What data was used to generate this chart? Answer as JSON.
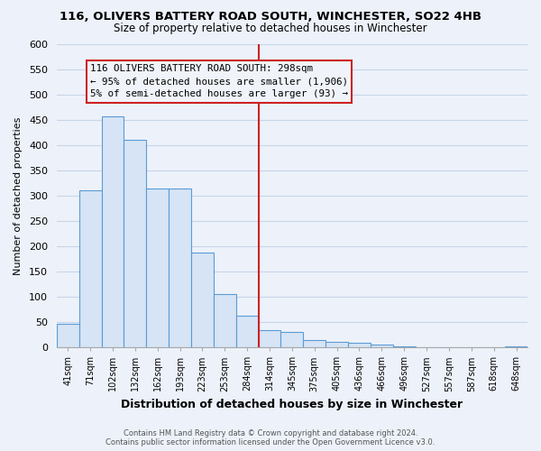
{
  "title": "116, OLIVERS BATTERY ROAD SOUTH, WINCHESTER, SO22 4HB",
  "subtitle": "Size of property relative to detached houses in Winchester",
  "xlabel": "Distribution of detached houses by size in Winchester",
  "ylabel": "Number of detached properties",
  "bar_labels": [
    "41sqm",
    "71sqm",
    "102sqm",
    "132sqm",
    "162sqm",
    "193sqm",
    "223sqm",
    "253sqm",
    "284sqm",
    "314sqm",
    "345sqm",
    "375sqm",
    "405sqm",
    "436sqm",
    "466sqm",
    "496sqm",
    "527sqm",
    "557sqm",
    "587sqm",
    "618sqm",
    "648sqm"
  ],
  "bar_values": [
    46,
    310,
    458,
    410,
    315,
    315,
    188,
    105,
    63,
    35,
    30,
    14,
    11,
    10,
    5,
    2,
    1,
    0,
    0,
    0,
    2
  ],
  "bar_fill_color": "#d6e4f5",
  "bar_edge_color": "#5b9bd5",
  "vline_bar_index": 8,
  "vline_color": "#cc2222",
  "annotation_text": "116 OLIVERS BATTERY ROAD SOUTH: 298sqm\n← 95% of detached houses are smaller (1,906)\n5% of semi-detached houses are larger (93) →",
  "annotation_box_facecolor": "#f0f4fa",
  "annotation_box_edgecolor": "#cc2222",
  "ylim": [
    0,
    600
  ],
  "ytick_step": 50,
  "footer_line1": "Contains HM Land Registry data © Crown copyright and database right 2024.",
  "footer_line2": "Contains public sector information licensed under the Open Government Licence v3.0.",
  "bg_color": "#edf2fa",
  "grid_color": "#c8d4e8",
  "title_fontsize": 9.5,
  "subtitle_fontsize": 8.5
}
